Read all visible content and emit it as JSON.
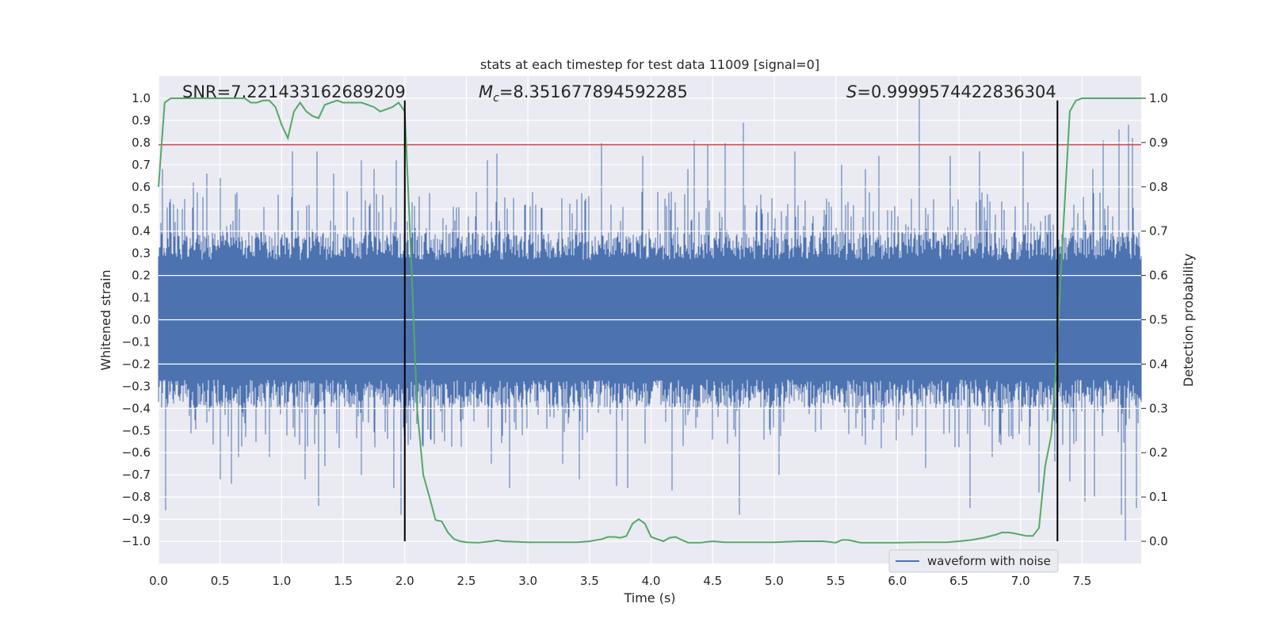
{
  "chart_data": {
    "type": "line",
    "title": "stats at each timestep for test data 11009 [signal=0]",
    "xlabel": "Time (s)",
    "ylabel": "Whitened strain",
    "y2label": "Detection probability",
    "xlim": [
      0.0,
      7.98
    ],
    "ylim": [
      -1.1,
      1.1
    ],
    "y2lim": [
      -0.05,
      1.05
    ],
    "x_ticks": [
      0.0,
      0.5,
      1.0,
      1.5,
      2.0,
      2.5,
      3.0,
      3.5,
      4.0,
      4.5,
      5.0,
      5.5,
      6.0,
      6.5,
      7.0,
      7.5
    ],
    "x_tick_labels": [
      "0.0",
      "0.5",
      "1.0",
      "1.5",
      "2.0",
      "2.5",
      "3.0",
      "3.5",
      "4.0",
      "4.5",
      "5.0",
      "5.5",
      "6.0",
      "6.5",
      "7.0",
      "7.5"
    ],
    "y_ticks": [
      -1.0,
      -0.9,
      -0.8,
      -0.7,
      -0.6,
      -0.5,
      -0.4,
      -0.3,
      -0.2,
      -0.1,
      0.0,
      0.1,
      0.2,
      0.3,
      0.4,
      0.5,
      0.6,
      0.7,
      0.8,
      0.9,
      1.0
    ],
    "y_tick_labels": [
      "−1.0",
      "−0.9",
      "−0.8",
      "−0.7",
      "−0.6",
      "−0.5",
      "−0.4",
      "−0.3",
      "−0.2",
      "−0.1",
      "0.0",
      "0.1",
      "0.2",
      "0.3",
      "0.4",
      "0.5",
      "0.6",
      "0.7",
      "0.8",
      "0.9",
      "1.0"
    ],
    "y2_ticks": [
      0.0,
      0.1,
      0.2,
      0.3,
      0.4,
      0.5,
      0.6,
      0.7,
      0.8,
      0.9,
      1.0
    ],
    "y2_tick_labels": [
      "0.0",
      "0.1",
      "0.2",
      "0.3",
      "0.4",
      "0.5",
      "0.6",
      "0.7",
      "0.8",
      "0.9",
      "1.0"
    ],
    "annotations": {
      "snr": "SNR=7.221433162689209",
      "mc_symbol": "M",
      "mc_subscript": "c",
      "mc_value": "=8.351677894592285",
      "s_symbol": "S",
      "s_value": "=0.9999574422836304"
    },
    "legend": {
      "label": "waveform with noise",
      "location": "lower-right"
    },
    "waveform": {
      "name": "waveform with noise",
      "color": "#4c72b0",
      "x_start": 0.0,
      "x_end": 7.98,
      "envelope_typical": 0.36,
      "peaks": [
        {
          "t": 0.03,
          "v": 0.68
        },
        {
          "t": 0.06,
          "v": -0.86
        },
        {
          "t": 0.28,
          "v": 0.62
        },
        {
          "t": 0.39,
          "v": 0.66
        },
        {
          "t": 0.5,
          "v": 0.64
        },
        {
          "t": 0.5,
          "v": -0.72
        },
        {
          "t": 0.59,
          "v": -0.74
        },
        {
          "t": 0.65,
          "v": -0.62
        },
        {
          "t": 0.9,
          "v": -0.62
        },
        {
          "t": 1.09,
          "v": 0.76
        },
        {
          "t": 1.19,
          "v": -0.72
        },
        {
          "t": 1.29,
          "v": 0.76
        },
        {
          "t": 1.3,
          "v": -0.84
        },
        {
          "t": 1.35,
          "v": -0.66
        },
        {
          "t": 1.42,
          "v": 0.66
        },
        {
          "t": 1.53,
          "v": 0.58
        },
        {
          "t": 1.65,
          "v": 0.72
        },
        {
          "t": 1.65,
          "v": -0.7
        },
        {
          "t": 1.75,
          "v": 0.68
        },
        {
          "t": 1.91,
          "v": -0.76
        },
        {
          "t": 1.93,
          "v": 0.72
        },
        {
          "t": 1.97,
          "v": -0.88
        },
        {
          "t": 2.67,
          "v": 0.72
        },
        {
          "t": 2.7,
          "v": -0.65
        },
        {
          "t": 2.75,
          "v": 0.75
        },
        {
          "t": 2.85,
          "v": -0.76
        },
        {
          "t": 3.28,
          "v": -0.65
        },
        {
          "t": 3.42,
          "v": -0.72
        },
        {
          "t": 3.6,
          "v": 0.8
        },
        {
          "t": 3.72,
          "v": -0.75
        },
        {
          "t": 3.81,
          "v": -0.76
        },
        {
          "t": 3.93,
          "v": 0.74
        },
        {
          "t": 4.17,
          "v": -0.77
        },
        {
          "t": 4.3,
          "v": 0.68
        },
        {
          "t": 4.35,
          "v": 0.81
        },
        {
          "t": 4.46,
          "v": 0.79
        },
        {
          "t": 4.6,
          "v": 0.8
        },
        {
          "t": 4.72,
          "v": -0.88
        },
        {
          "t": 4.75,
          "v": 0.89
        },
        {
          "t": 5.04,
          "v": -0.7
        },
        {
          "t": 5.17,
          "v": 0.76
        },
        {
          "t": 5.55,
          "v": 0.7
        },
        {
          "t": 5.74,
          "v": 0.68
        },
        {
          "t": 5.85,
          "v": 0.74
        },
        {
          "t": 6.18,
          "v": 1.0
        },
        {
          "t": 6.23,
          "v": -0.67
        },
        {
          "t": 6.43,
          "v": 0.74
        },
        {
          "t": 6.59,
          "v": -0.85
        },
        {
          "t": 6.67,
          "v": 0.76
        },
        {
          "t": 6.77,
          "v": -0.62
        },
        {
          "t": 7.02,
          "v": 0.76
        },
        {
          "t": 7.15,
          "v": -0.78
        },
        {
          "t": 7.28,
          "v": -0.64
        },
        {
          "t": 7.4,
          "v": -0.73
        },
        {
          "t": 7.43,
          "v": 0.52
        },
        {
          "t": 7.52,
          "v": -0.82
        },
        {
          "t": 7.59,
          "v": 0.68
        },
        {
          "t": 7.6,
          "v": -0.8
        },
        {
          "t": 7.67,
          "v": 0.81
        },
        {
          "t": 7.8,
          "v": 0.86
        },
        {
          "t": 7.82,
          "v": -0.88
        },
        {
          "t": 7.85,
          "v": -1.0
        },
        {
          "t": 7.88,
          "v": 0.88
        },
        {
          "t": 7.91,
          "v": 0.82
        },
        {
          "t": 7.94,
          "v": -0.85
        }
      ]
    },
    "probability": {
      "name": "detection probability",
      "color": "#55a868",
      "x": [
        0.0,
        0.05,
        0.1,
        0.15,
        0.2,
        0.3,
        0.4,
        0.5,
        0.6,
        0.7,
        0.75,
        0.8,
        0.85,
        0.9,
        0.95,
        1.0,
        1.05,
        1.1,
        1.15,
        1.2,
        1.25,
        1.3,
        1.35,
        1.4,
        1.45,
        1.5,
        1.55,
        1.6,
        1.65,
        1.7,
        1.75,
        1.8,
        1.85,
        1.9,
        1.95,
        2.0,
        2.05,
        2.1,
        2.15,
        2.2,
        2.25,
        2.3,
        2.35,
        2.4,
        2.45,
        2.5,
        2.6,
        2.7,
        2.75,
        2.8,
        3.0,
        3.2,
        3.4,
        3.5,
        3.6,
        3.65,
        3.7,
        3.75,
        3.8,
        3.85,
        3.9,
        3.95,
        4.0,
        4.05,
        4.1,
        4.15,
        4.2,
        4.25,
        4.3,
        4.4,
        4.5,
        4.6,
        4.8,
        5.0,
        5.2,
        5.25,
        5.3,
        5.4,
        5.5,
        5.55,
        5.6,
        5.65,
        5.7,
        5.8,
        6.0,
        6.2,
        6.4,
        6.5,
        6.6,
        6.7,
        6.8,
        6.85,
        6.9,
        6.95,
        7.0,
        7.05,
        7.1,
        7.15,
        7.2,
        7.25,
        7.3,
        7.35,
        7.4,
        7.45,
        7.5,
        7.6,
        7.7,
        7.8,
        7.9,
        7.98
      ],
      "y": [
        0.8,
        0.99,
        1.0,
        1.0,
        1.0,
        1.0,
        1.0,
        1.0,
        1.0,
        1.0,
        0.99,
        0.99,
        0.995,
        0.995,
        0.98,
        0.94,
        0.91,
        0.97,
        0.99,
        0.97,
        0.96,
        0.955,
        0.985,
        0.99,
        0.995,
        0.99,
        0.99,
        0.99,
        0.99,
        0.985,
        0.98,
        0.97,
        0.975,
        0.98,
        0.99,
        0.97,
        0.65,
        0.3,
        0.15,
        0.1,
        0.048,
        0.045,
        0.02,
        0.005,
        0.0,
        -0.002,
        -0.003,
        0.0,
        0.002,
        0.0,
        -0.002,
        -0.002,
        -0.002,
        0.0,
        0.005,
        0.01,
        0.01,
        0.008,
        0.012,
        0.04,
        0.05,
        0.04,
        0.01,
        0.005,
        0.0,
        0.008,
        0.01,
        0.003,
        -0.003,
        -0.003,
        0.0,
        -0.002,
        -0.002,
        -0.002,
        0.0,
        0.0,
        0.0,
        0.0,
        -0.003,
        0.003,
        0.003,
        0.0,
        -0.003,
        -0.003,
        -0.003,
        -0.002,
        -0.002,
        0.0,
        0.003,
        0.008,
        0.015,
        0.02,
        0.02,
        0.018,
        0.015,
        0.012,
        0.012,
        0.03,
        0.17,
        0.24,
        0.45,
        0.72,
        0.97,
        0.995,
        1.0,
        1.0,
        1.0,
        1.0,
        1.0,
        1.0
      ]
    },
    "threshold": {
      "value": 0.79,
      "color": "#c44e52"
    },
    "markers": {
      "times": [
        2.0,
        7.3
      ],
      "y_from": -1.0,
      "y_to": 0.99,
      "color": "#000000"
    }
  }
}
